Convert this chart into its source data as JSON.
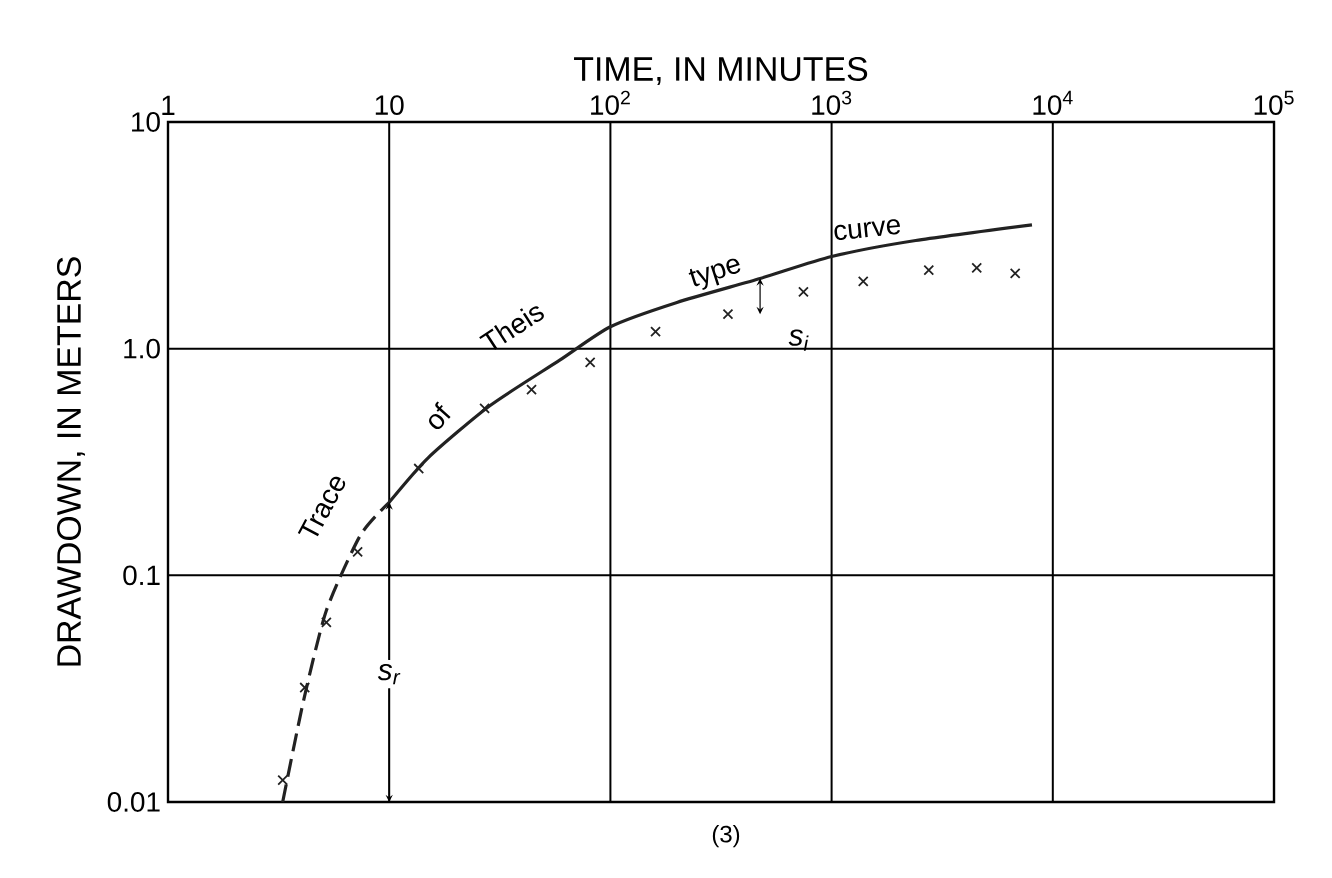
{
  "chart_data": {
    "type": "scatter",
    "xlabel": "TIME, IN MINUTES",
    "ylabel": "DRAWDOWN, IN METERS",
    "log": "xy",
    "grid": true,
    "marker": "cross",
    "xlim": [
      1,
      100000
    ],
    "ylim": [
      0.01,
      10
    ],
    "xticks": [
      1,
      10,
      {
        "value": 100,
        "label": "10$^{2}$"
      },
      {
        "value": 1000,
        "label": "10$^{3}$"
      },
      {
        "value": 10000,
        "label": "10$^{4}$"
      },
      {
        "value": 100000,
        "label": "10$^{5}$"
      }
    ],
    "yticks": [
      0.01,
      0.1,
      {
        "value": 1,
        "label": "1.0"
      },
      10
    ],
    "series": [
      {
        "color": "#222222",
        "x": [
          3.3,
          4.15,
          5.2,
          7.2,
          13.6,
          27,
          44,
          81,
          160,
          340,
          746,
          1390,
          2750,
          4530,
          6760
        ],
        "values": [
          0.0125,
          0.032,
          0.062,
          0.127,
          0.296,
          0.545,
          0.66,
          0.87,
          1.19,
          1.42,
          1.78,
          1.98,
          2.22,
          2.27,
          2.15
        ]
      },
      {
        "type": "line",
        "color": "#222222",
        "line_style": "dashed",
        "marker": "none",
        "x": [
          3.3,
          4.1,
          5.2,
          7.4,
          10
        ],
        "values": [
          0.01,
          0.028,
          0.07,
          0.15,
          0.21
        ]
      },
      {
        "type": "line",
        "color": "#222222",
        "line_style": "solid",
        "marker": "none",
        "x": [
          10,
          15,
          28.5,
          59,
          100,
          200,
          475,
          1000,
          2400,
          8050
        ],
        "values": [
          0.21,
          0.33,
          0.56,
          0.89,
          1.25,
          1.6,
          2.04,
          2.55,
          3.0,
          3.52
        ]
      }
    ],
    "annotations": [
      "Trace",
      "of",
      "Theis",
      "type",
      "curve",
      {
        "text": "s$_{r}$",
        "x": 10,
        "y": 0.21
      },
      {
        "text": "s$_{i}$",
        "x": 475,
        "y": 2.04
      },
      "(3)"
    ]
  }
}
